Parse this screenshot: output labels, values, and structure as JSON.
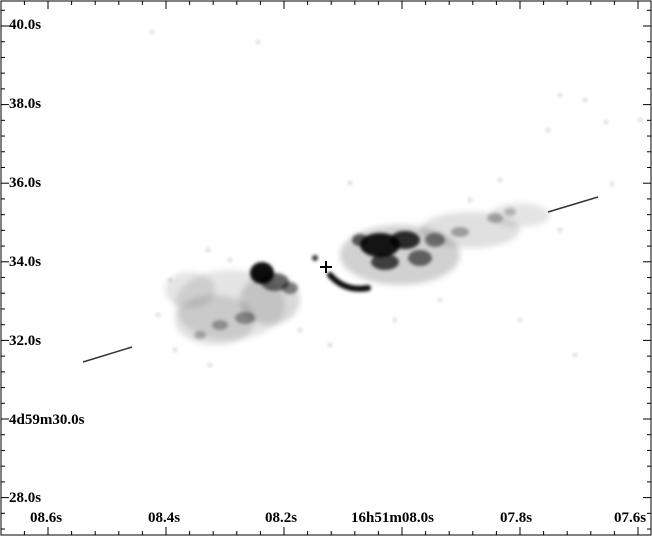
{
  "image": {
    "description_free": true,
    "y_tick_labels": [
      "40.0s",
      "38.0s",
      "36.0s",
      "34.0s",
      "32.0s",
      "4d59m30.0s",
      "28.0s"
    ],
    "x_tick_labels": [
      "08.6s",
      "08.4s",
      "08.2s",
      "16h51m08.0s",
      "07.8s",
      "07.6s"
    ],
    "colors": {
      "background": "#ffffff",
      "ink": "#000000",
      "axis": "#000000"
    }
  }
}
